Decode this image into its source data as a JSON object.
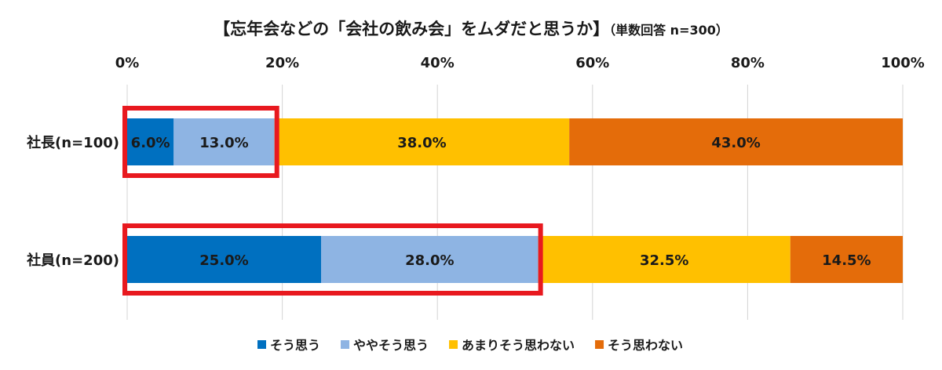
{
  "chart_data": {
    "type": "bar",
    "orientation": "horizontal",
    "stacked": "percent",
    "title": "【忘年会などの「会社の飲み会」をムダだと思うか】",
    "subtitle": "（単数回答 n=300）",
    "categories": [
      "社長(n=100)",
      "社員(n=200)"
    ],
    "series": [
      {
        "name": "そう思う",
        "color": "#0070c0",
        "values": [
          6.0,
          25.0
        ],
        "labels": [
          "6.0%",
          "25.0%"
        ]
      },
      {
        "name": "ややそう思う",
        "color": "#8eb4e3",
        "values": [
          13.0,
          28.0
        ],
        "labels": [
          "13.0%",
          "28.0%"
        ]
      },
      {
        "name": "あまりそう思わない",
        "color": "#ffc000",
        "values": [
          38.0,
          32.5
        ],
        "labels": [
          "38.0%",
          "32.5%"
        ]
      },
      {
        "name": "そう思わない",
        "color": "#e46c0a",
        "values": [
          43.0,
          14.5
        ],
        "labels": [
          "43.0%",
          "14.5%"
        ]
      }
    ],
    "xlim": [
      0,
      100
    ],
    "x_ticks": [
      "0%",
      "20%",
      "40%",
      "60%",
      "80%",
      "100%"
    ],
    "x_axis_position": "top",
    "grid": true,
    "legend_position": "bottom",
    "highlight": {
      "color": "#e8191f",
      "description": "red outline around そう思う + ややそう思う for each group"
    }
  }
}
